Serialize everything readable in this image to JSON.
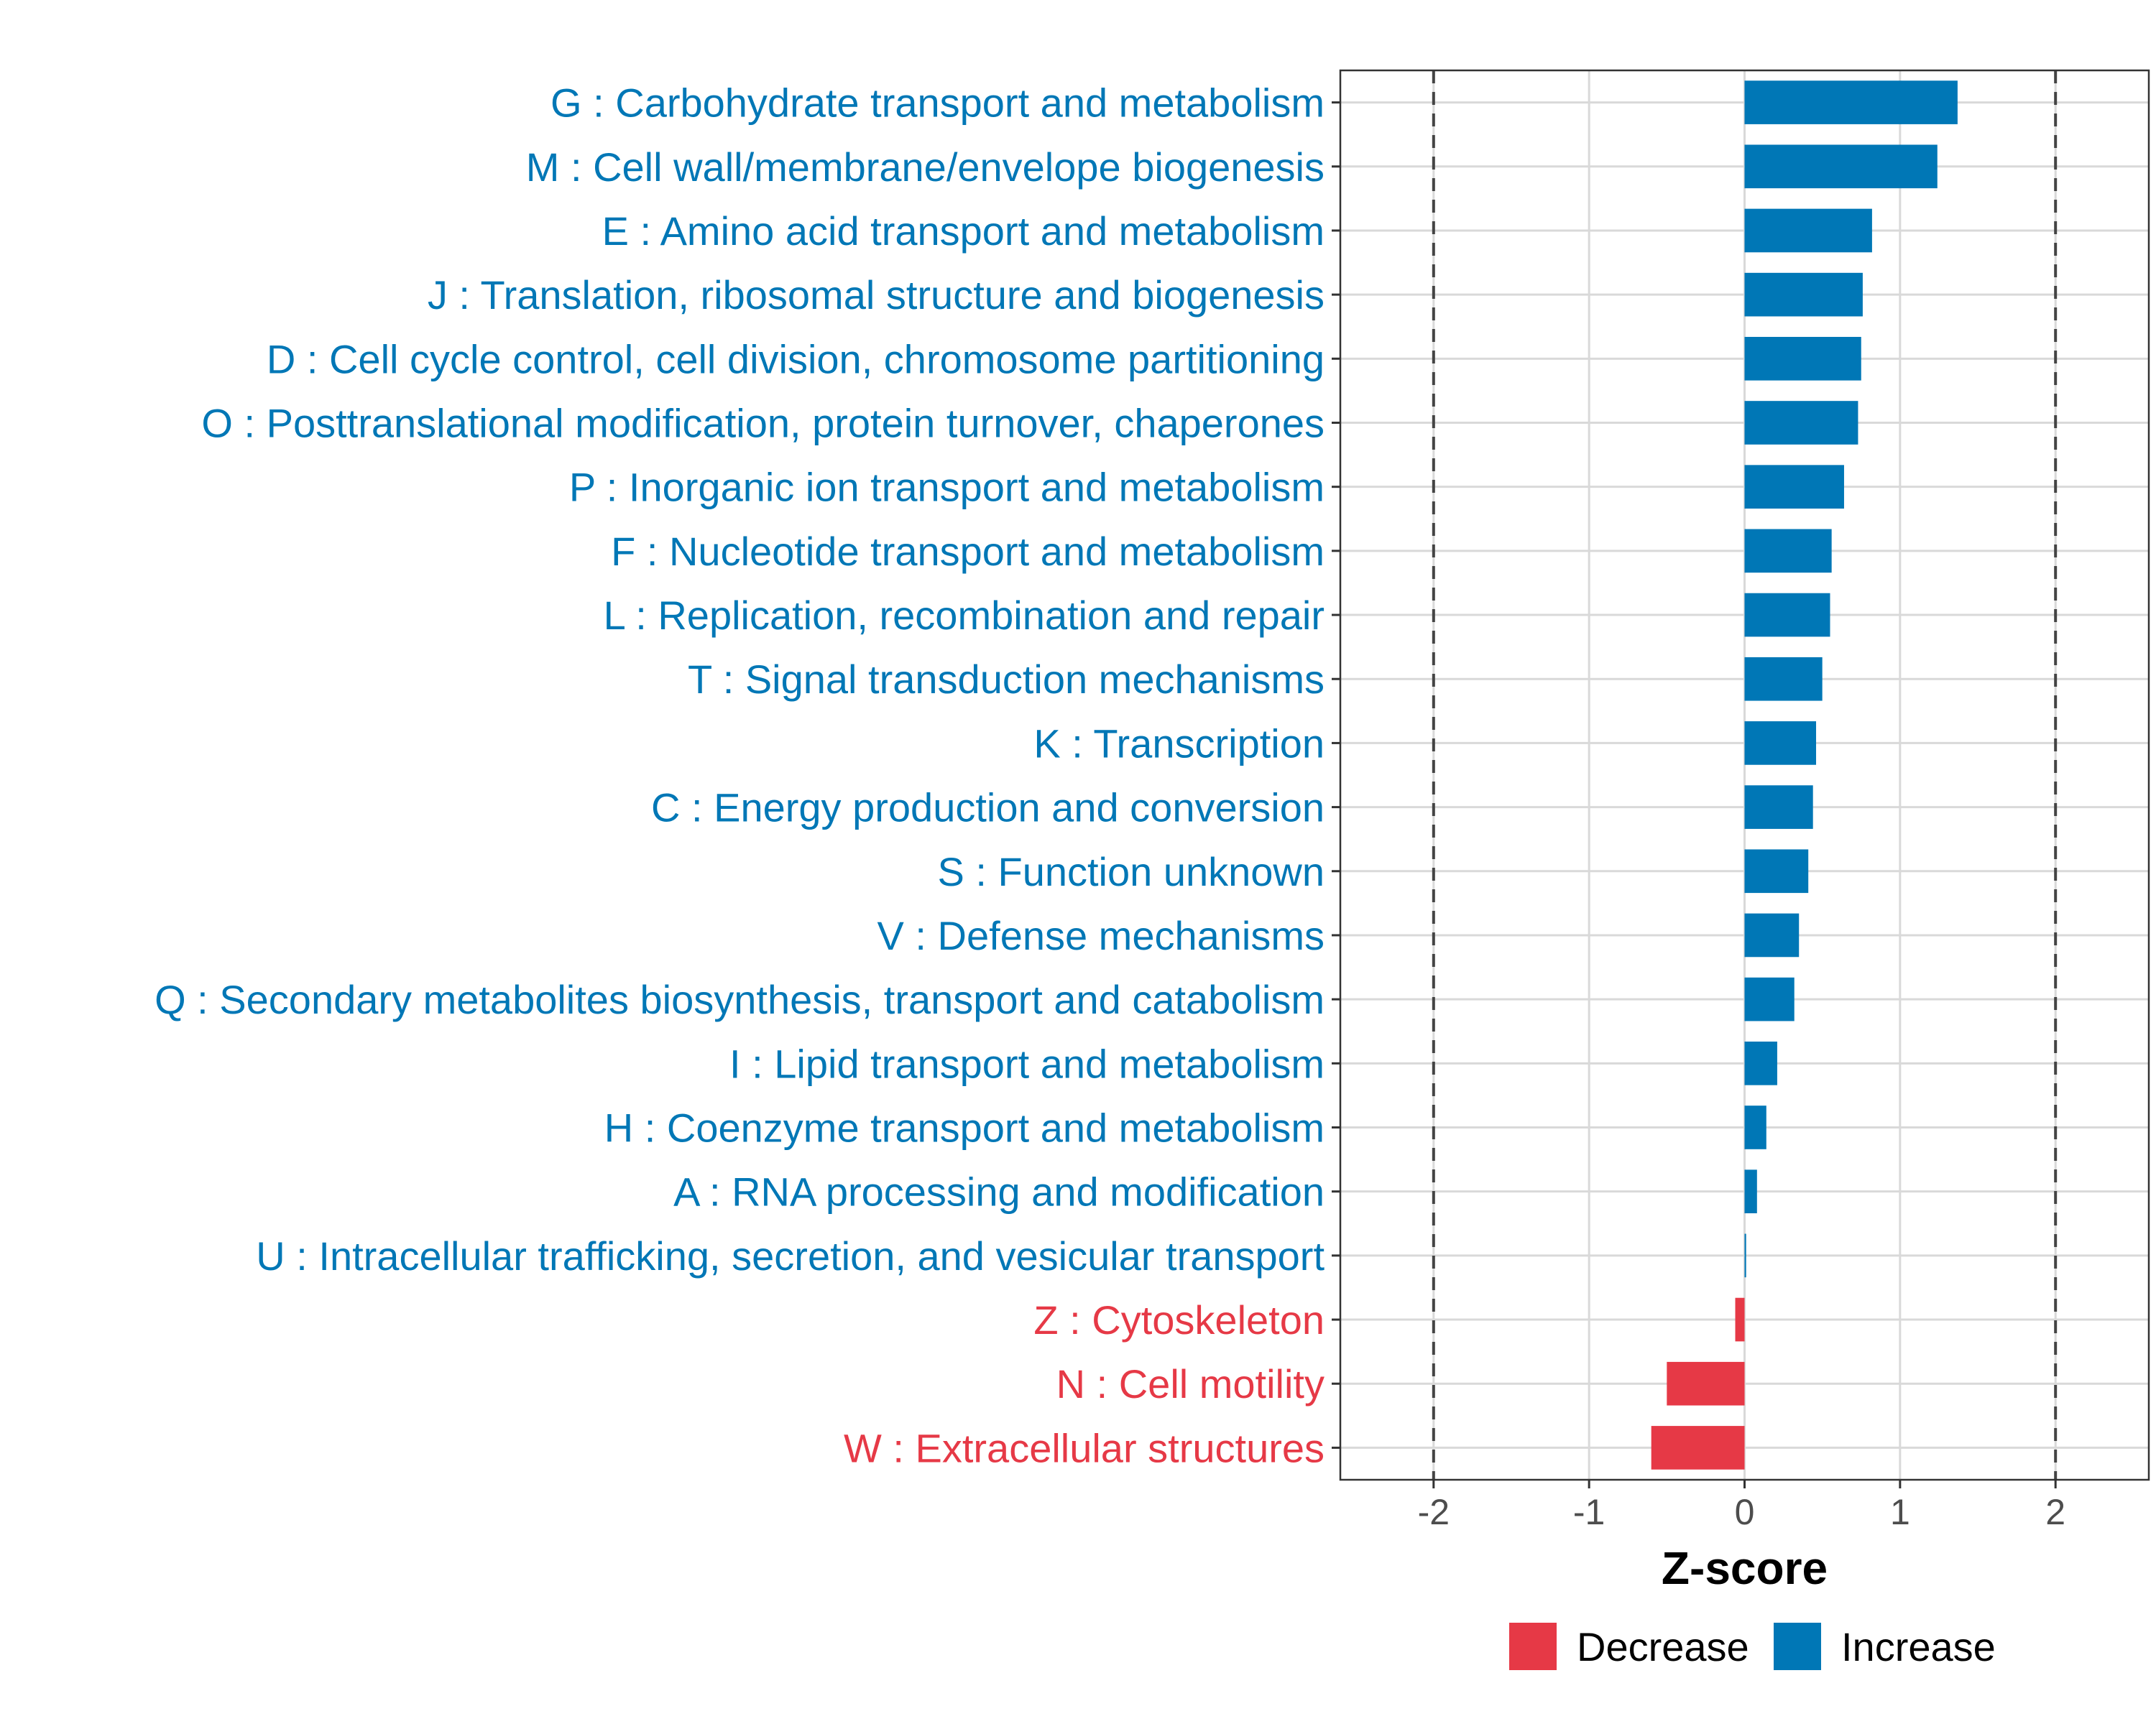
{
  "chart_data": {
    "type": "bar",
    "orientation": "horizontal",
    "xlabel": "Z-score",
    "xlim": [
      -2.6,
      2.6
    ],
    "xticks": [
      -2,
      -1,
      0,
      1,
      2
    ],
    "xtick_labels": [
      "-2",
      "-1",
      "0",
      "1",
      "2"
    ],
    "reference_lines": [
      -2,
      2
    ],
    "grid": true,
    "colors": {
      "Increase": "#0077b6",
      "Decrease": "#e63946"
    },
    "legend": {
      "position": "bottom",
      "items": [
        {
          "label": "Decrease",
          "color": "#e63946"
        },
        {
          "label": "Increase",
          "color": "#0077b6"
        }
      ]
    },
    "bars": [
      {
        "label": "G : Carbohydrate transport and metabolism",
        "value": 1.37,
        "group": "Increase"
      },
      {
        "label": "M : Cell wall/membrane/envelope biogenesis",
        "value": 1.24,
        "group": "Increase"
      },
      {
        "label": "E : Amino acid transport and metabolism",
        "value": 0.82,
        "group": "Increase"
      },
      {
        "label": "J : Translation, ribosomal structure and biogenesis",
        "value": 0.76,
        "group": "Increase"
      },
      {
        "label": "D : Cell cycle control, cell division, chromosome partitioning",
        "value": 0.75,
        "group": "Increase"
      },
      {
        "label": "O : Posttranslational modification, protein turnover, chaperones",
        "value": 0.73,
        "group": "Increase"
      },
      {
        "label": "P : Inorganic ion transport and metabolism",
        "value": 0.64,
        "group": "Increase"
      },
      {
        "label": "F : Nucleotide transport and metabolism",
        "value": 0.56,
        "group": "Increase"
      },
      {
        "label": "L : Replication, recombination and repair",
        "value": 0.55,
        "group": "Increase"
      },
      {
        "label": "T : Signal transduction mechanisms",
        "value": 0.5,
        "group": "Increase"
      },
      {
        "label": "K : Transcription",
        "value": 0.46,
        "group": "Increase"
      },
      {
        "label": "C : Energy production and conversion",
        "value": 0.44,
        "group": "Increase"
      },
      {
        "label": "S : Function unknown",
        "value": 0.41,
        "group": "Increase"
      },
      {
        "label": "V : Defense mechanisms",
        "value": 0.35,
        "group": "Increase"
      },
      {
        "label": "Q : Secondary metabolites biosynthesis, transport and catabolism",
        "value": 0.32,
        "group": "Increase"
      },
      {
        "label": "I : Lipid transport and metabolism",
        "value": 0.21,
        "group": "Increase"
      },
      {
        "label": "H : Coenzyme transport and metabolism",
        "value": 0.14,
        "group": "Increase"
      },
      {
        "label": "A : RNA processing and modification",
        "value": 0.08,
        "group": "Increase"
      },
      {
        "label": "U : Intracellular trafficking, secretion, and vesicular transport",
        "value": 0.01,
        "group": "Increase"
      },
      {
        "label": "Z : Cytoskeleton",
        "value": -0.06,
        "group": "Decrease"
      },
      {
        "label": "N : Cell motility",
        "value": -0.5,
        "group": "Decrease"
      },
      {
        "label": "W : Extracellular structures",
        "value": -0.6,
        "group": "Decrease"
      }
    ]
  }
}
